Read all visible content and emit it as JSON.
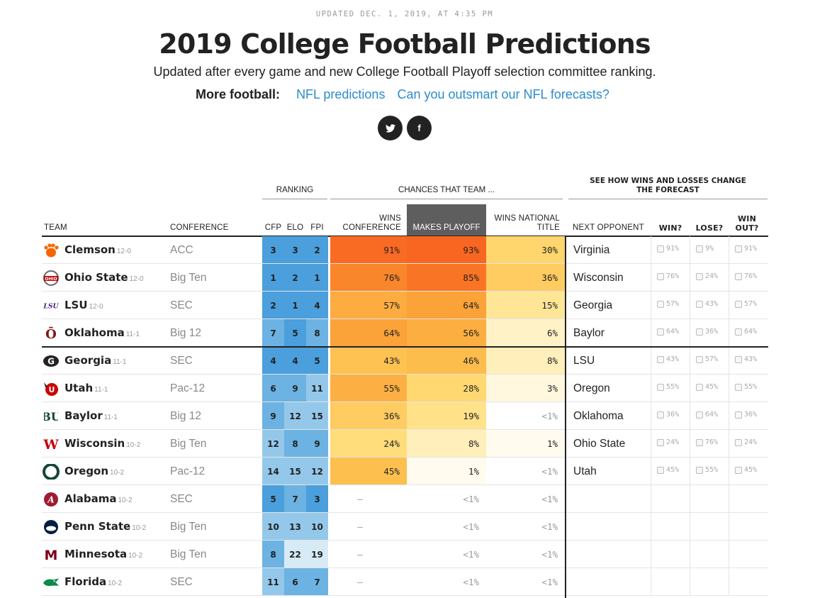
{
  "header": {
    "updated": "UPDATED DEC. 1, 2019, AT 4:35 PM",
    "title": "2019 College Football Predictions",
    "subtitle": "Updated after every game and new College Football Playoff selection committee ranking.",
    "more_label": "More football:",
    "links": [
      "NFL predictions",
      "Can you outsmart our NFL forecasts?"
    ],
    "social": [
      "twitter",
      "facebook"
    ]
  },
  "table": {
    "group_headers": {
      "ranking": "RANKING",
      "chances": "CHANCES THAT TEAM ...",
      "forecast": "SEE HOW WINS AND LOSSES CHANGE THE FORECAST"
    },
    "columns": {
      "team": "TEAM",
      "conference": "CONFERENCE",
      "cfp": "CFP",
      "elo": "ELO",
      "fpi": "FPI",
      "wins_conference": "WINS CONFERENCE",
      "makes_playoff": "MAKES PLAYOFF",
      "wins_title": "WINS NATIONAL TITLE",
      "next_opponent": "NEXT OPPONENT",
      "win": "WIN?",
      "lose": "LOSE?",
      "win_out": "WIN OUT?"
    },
    "rows": [
      {
        "team": "Clemson",
        "record": "12-0",
        "conference": "ACC",
        "cfp": "3",
        "elo": "3",
        "fpi": "2",
        "wins_conf": "91%",
        "playoff": "93%",
        "title": "30%",
        "opp": "Virginia",
        "win": "91%",
        "lose": "9%",
        "win_out": "91%",
        "logo_color": "#f56600"
      },
      {
        "team": "Ohio State",
        "record": "12-0",
        "conference": "Big Ten",
        "cfp": "1",
        "elo": "2",
        "fpi": "1",
        "wins_conf": "76%",
        "playoff": "85%",
        "title": "36%",
        "opp": "Wisconsin",
        "win": "76%",
        "lose": "24%",
        "win_out": "76%",
        "logo_color": "#bb0000"
      },
      {
        "team": "LSU",
        "record": "12-0",
        "conference": "SEC",
        "cfp": "2",
        "elo": "1",
        "fpi": "4",
        "wins_conf": "57%",
        "playoff": "64%",
        "title": "15%",
        "opp": "Georgia",
        "win": "57%",
        "lose": "43%",
        "win_out": "57%",
        "logo_color": "#461d7c"
      },
      {
        "team": "Oklahoma",
        "record": "11-1",
        "conference": "Big 12",
        "cfp": "7",
        "elo": "5",
        "fpi": "8",
        "wins_conf": "64%",
        "playoff": "56%",
        "title": "6%",
        "opp": "Baylor",
        "win": "64%",
        "lose": "36%",
        "win_out": "64%",
        "logo_color": "#841617"
      },
      {
        "team": "Georgia",
        "record": "11-1",
        "conference": "SEC",
        "cfp": "4",
        "elo": "4",
        "fpi": "5",
        "wins_conf": "43%",
        "playoff": "46%",
        "title": "8%",
        "opp": "LSU",
        "win": "43%",
        "lose": "57%",
        "win_out": "43%",
        "logo_color": "#222222"
      },
      {
        "team": "Utah",
        "record": "11-1",
        "conference": "Pac-12",
        "cfp": "6",
        "elo": "9",
        "fpi": "11",
        "wins_conf": "55%",
        "playoff": "28%",
        "title": "3%",
        "opp": "Oregon",
        "win": "55%",
        "lose": "45%",
        "win_out": "55%",
        "logo_color": "#cc0000"
      },
      {
        "team": "Baylor",
        "record": "11-1",
        "conference": "Big 12",
        "cfp": "9",
        "elo": "12",
        "fpi": "15",
        "wins_conf": "36%",
        "playoff": "19%",
        "title": "<1%",
        "opp": "Oklahoma",
        "win": "36%",
        "lose": "64%",
        "win_out": "36%",
        "logo_color": "#154734"
      },
      {
        "team": "Wisconsin",
        "record": "10-2",
        "conference": "Big Ten",
        "cfp": "12",
        "elo": "8",
        "fpi": "9",
        "wins_conf": "24%",
        "playoff": "8%",
        "title": "1%",
        "opp": "Ohio State",
        "win": "24%",
        "lose": "76%",
        "win_out": "24%",
        "logo_color": "#c5050c"
      },
      {
        "team": "Oregon",
        "record": "10-2",
        "conference": "Pac-12",
        "cfp": "14",
        "elo": "15",
        "fpi": "12",
        "wins_conf": "45%",
        "playoff": "1%",
        "title": "<1%",
        "opp": "Utah",
        "win": "45%",
        "lose": "55%",
        "win_out": "45%",
        "logo_color": "#154733"
      },
      {
        "team": "Alabama",
        "record": "10-2",
        "conference": "SEC",
        "cfp": "5",
        "elo": "7",
        "fpi": "3",
        "wins_conf": "—",
        "playoff": "<1%",
        "title": "<1%",
        "opp": "",
        "win": "",
        "lose": "",
        "win_out": "",
        "logo_color": "#9e1b32"
      },
      {
        "team": "Penn State",
        "record": "10-2",
        "conference": "Big Ten",
        "cfp": "10",
        "elo": "13",
        "fpi": "10",
        "wins_conf": "—",
        "playoff": "<1%",
        "title": "<1%",
        "opp": "",
        "win": "",
        "lose": "",
        "win_out": "",
        "logo_color": "#041e42"
      },
      {
        "team": "Minnesota",
        "record": "10-2",
        "conference": "Big Ten",
        "cfp": "8",
        "elo": "22",
        "fpi": "19",
        "wins_conf": "—",
        "playoff": "<1%",
        "title": "<1%",
        "opp": "",
        "win": "",
        "lose": "",
        "win_out": "",
        "logo_color": "#7a0019"
      },
      {
        "team": "Florida",
        "record": "10-2",
        "conference": "SEC",
        "cfp": "11",
        "elo": "6",
        "fpi": "7",
        "wins_conf": "—",
        "playoff": "<1%",
        "title": "<1%",
        "opp": "",
        "win": "",
        "lose": "",
        "win_out": "",
        "logo_color": "#0b8a4a"
      }
    ]
  }
}
